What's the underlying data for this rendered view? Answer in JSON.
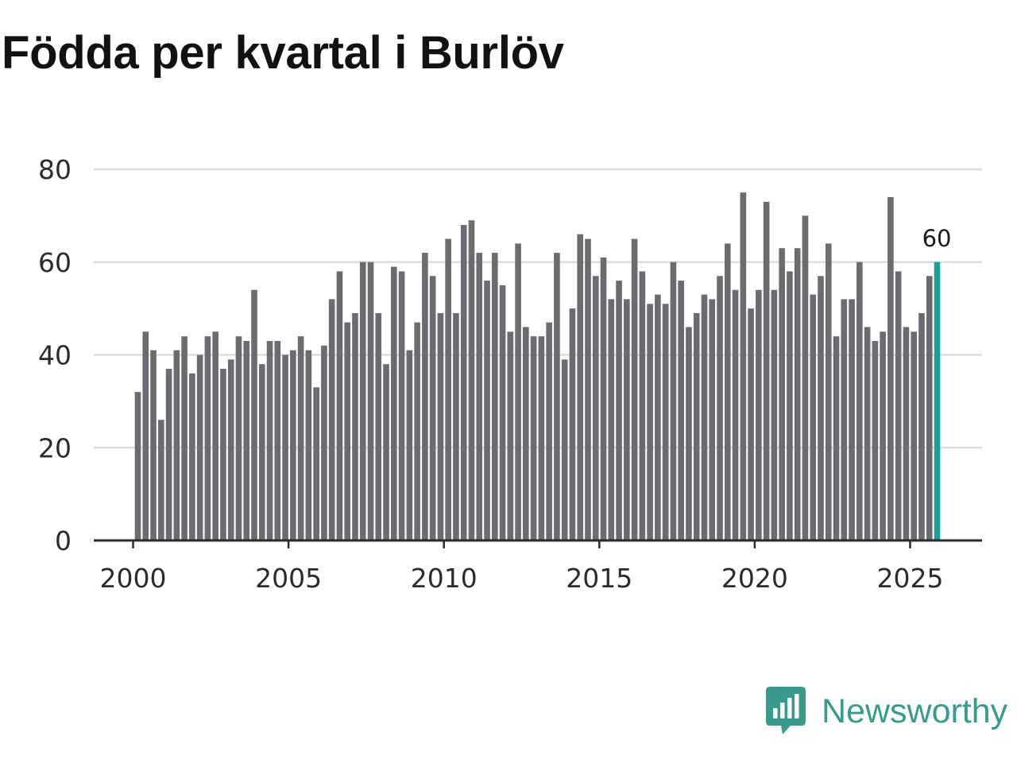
{
  "chart_data": {
    "type": "bar",
    "title": "Födda per kvartal i Burlöv",
    "xlabel": "",
    "ylabel": "",
    "ylim": [
      0,
      80
    ],
    "yticks": [
      0,
      20,
      40,
      60,
      80
    ],
    "xticks": [
      "2000",
      "2005",
      "2010",
      "2015",
      "2020",
      "2025"
    ],
    "grid": true,
    "period": "quarter",
    "start": "2000 Q1",
    "end": "2025 Q4",
    "values": [
      32,
      45,
      41,
      26,
      37,
      41,
      44,
      36,
      40,
      44,
      45,
      37,
      39,
      44,
      43,
      54,
      38,
      43,
      43,
      40,
      41,
      44,
      41,
      33,
      42,
      52,
      58,
      47,
      49,
      60,
      60,
      49,
      38,
      59,
      58,
      41,
      47,
      62,
      57,
      49,
      65,
      49,
      68,
      69,
      62,
      56,
      62,
      55,
      45,
      64,
      46,
      44,
      44,
      47,
      62,
      39,
      50,
      66,
      65,
      57,
      61,
      52,
      56,
      52,
      65,
      58,
      51,
      53,
      51,
      60,
      56,
      46,
      49,
      53,
      52,
      57,
      64,
      54,
      75,
      50,
      54,
      73,
      54,
      63,
      58,
      63,
      70,
      53,
      57,
      64,
      44,
      52,
      52,
      60,
      46,
      43,
      45,
      74,
      58,
      46,
      45,
      49,
      57,
      60
    ],
    "bar_color": "#6b6b70",
    "highlight_color": "#1e9e94",
    "highlight_last": true,
    "last_value_label": "60"
  },
  "brand": {
    "name": "Newsworthy",
    "icon": "newsworthy-logo-icon",
    "color": "#3a9a8c"
  }
}
